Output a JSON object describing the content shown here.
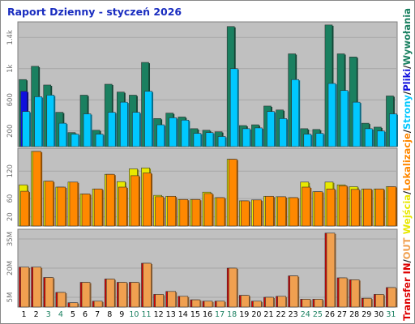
{
  "title": "Raport Dzienny -  styczeń 2026",
  "chart_data": [
    {
      "type": "bar",
      "yticks": [
        "200",
        "600",
        "1k",
        "1.4k"
      ],
      "ytick_values": [
        200,
        600,
        1000,
        1400
      ],
      "ylim": [
        0,
        1600
      ],
      "grid": true,
      "categories": [
        "1",
        "2",
        "3",
        "4",
        "5",
        "6",
        "7",
        "8",
        "9",
        "10",
        "11",
        "12",
        "13",
        "14",
        "15",
        "16",
        "17",
        "18",
        "19",
        "20",
        "21",
        "22",
        "23",
        "24",
        "25",
        "26",
        "27",
        "28",
        "29",
        "30",
        "31"
      ],
      "series": [
        {
          "name": "Wywołania",
          "color": "#1a8060",
          "values": [
            860,
            1030,
            790,
            440,
            180,
            660,
            210,
            800,
            700,
            660,
            1080,
            360,
            430,
            380,
            230,
            210,
            190,
            1540,
            270,
            280,
            520,
            470,
            1190,
            230,
            220,
            1560,
            1190,
            1150,
            300,
            250,
            650
          ]
        },
        {
          "name": "Pliki",
          "color": "#1010dd",
          "values": [
            710,
            0,
            0,
            0,
            0,
            0,
            0,
            0,
            0,
            0,
            0,
            0,
            0,
            0,
            0,
            0,
            0,
            0,
            0,
            0,
            0,
            0,
            0,
            0,
            0,
            0,
            0,
            0,
            0,
            0,
            0
          ]
        },
        {
          "name": "Strony",
          "color": "#00c8ff",
          "values": [
            450,
            640,
            660,
            300,
            160,
            420,
            160,
            440,
            570,
            440,
            710,
            280,
            370,
            340,
            170,
            180,
            130,
            1000,
            230,
            240,
            450,
            360,
            860,
            160,
            170,
            810,
            720,
            570,
            230,
            200,
            420
          ]
        }
      ]
    },
    {
      "type": "bar",
      "yticks": [
        "20",
        "60",
        "120"
      ],
      "ytick_values": [
        20,
        60,
        120
      ],
      "ylim": [
        0,
        170
      ],
      "grid": true,
      "categories": [
        "1",
        "2",
        "3",
        "4",
        "5",
        "6",
        "7",
        "8",
        "9",
        "10",
        "11",
        "12",
        "13",
        "14",
        "15",
        "16",
        "17",
        "18",
        "19",
        "20",
        "21",
        "22",
        "23",
        "24",
        "25",
        "26",
        "27",
        "28",
        "29",
        "30",
        "31"
      ],
      "series": [
        {
          "name": "Wejścia",
          "color": "#e8e800",
          "values": [
            90,
            163,
            98,
            85,
            96,
            70,
            81,
            113,
            97,
            125,
            127,
            67,
            65,
            58,
            58,
            74,
            62,
            146,
            55,
            57,
            65,
            64,
            62,
            96,
            75,
            96,
            90,
            86,
            81,
            81,
            86
          ]
        },
        {
          "name": "Lokalizacje",
          "color": "#ff8800",
          "values": [
            76,
            163,
            98,
            85,
            96,
            70,
            81,
            113,
            85,
            110,
            116,
            64,
            65,
            58,
            58,
            71,
            62,
            146,
            55,
            57,
            65,
            64,
            62,
            85,
            75,
            81,
            88,
            80,
            81,
            81,
            86
          ]
        }
      ]
    },
    {
      "type": "bar",
      "yticks": [
        "5M",
        "20M",
        "35M"
      ],
      "ytick_values": [
        5,
        20,
        35
      ],
      "ylim": [
        0,
        40
      ],
      "grid": true,
      "categories": [
        "1",
        "2",
        "3",
        "4",
        "5",
        "6",
        "7",
        "8",
        "9",
        "10",
        "11",
        "12",
        "13",
        "14",
        "15",
        "16",
        "17",
        "18",
        "19",
        "20",
        "21",
        "22",
        "23",
        "24",
        "25",
        "26",
        "27",
        "28",
        "29",
        "30",
        "31"
      ],
      "series": [
        {
          "name": "IN",
          "color": "#dd0000",
          "values": [
            20.5,
            20.5,
            15.2,
            7.5,
            2.2,
            12.7,
            3.0,
            14.4,
            12.7,
            12.7,
            22.5,
            6.5,
            8.0,
            5.5,
            3.7,
            3.0,
            3.0,
            20.0,
            6.0,
            3.0,
            5.0,
            5.5,
            16.0,
            4.0,
            4.0,
            38.0,
            15.0,
            14.0,
            4.5,
            6.5,
            10.0
          ]
        },
        {
          "name": "OUT",
          "color": "#f0a050",
          "values": [
            20.5,
            20.5,
            15.2,
            7.5,
            2.2,
            12.7,
            3.0,
            14.4,
            12.7,
            12.7,
            22.5,
            6.5,
            8.0,
            5.5,
            3.7,
            3.0,
            3.0,
            20.0,
            6.0,
            3.0,
            5.0,
            5.5,
            16.0,
            4.0,
            4.0,
            38.0,
            15.0,
            14.0,
            4.5,
            6.5,
            10.0
          ]
        }
      ]
    }
  ],
  "x_labels": [
    {
      "text": "1",
      "color": "#000000"
    },
    {
      "text": "2",
      "color": "#000000"
    },
    {
      "text": "3",
      "color": "#1a8060"
    },
    {
      "text": "4",
      "color": "#1a8060"
    },
    {
      "text": "5",
      "color": "#000000"
    },
    {
      "text": "6",
      "color": "#000000"
    },
    {
      "text": "7",
      "color": "#000000"
    },
    {
      "text": "8",
      "color": "#000000"
    },
    {
      "text": "9",
      "color": "#000000"
    },
    {
      "text": "10",
      "color": "#1a8060"
    },
    {
      "text": "11",
      "color": "#1a8060"
    },
    {
      "text": "12",
      "color": "#000000"
    },
    {
      "text": "13",
      "color": "#000000"
    },
    {
      "text": "14",
      "color": "#000000"
    },
    {
      "text": "15",
      "color": "#000000"
    },
    {
      "text": "16",
      "color": "#000000"
    },
    {
      "text": "17",
      "color": "#1a8060"
    },
    {
      "text": "18",
      "color": "#1a8060"
    },
    {
      "text": "19",
      "color": "#000000"
    },
    {
      "text": "20",
      "color": "#000000"
    },
    {
      "text": "21",
      "color": "#000000"
    },
    {
      "text": "22",
      "color": "#000000"
    },
    {
      "text": "23",
      "color": "#000000"
    },
    {
      "text": "24",
      "color": "#1a8060"
    },
    {
      "text": "25",
      "color": "#1a8060"
    },
    {
      "text": "26",
      "color": "#000000"
    },
    {
      "text": "27",
      "color": "#000000"
    },
    {
      "text": "28",
      "color": "#000000"
    },
    {
      "text": "29",
      "color": "#000000"
    },
    {
      "text": "30",
      "color": "#000000"
    },
    {
      "text": "31",
      "color": "#1a8060"
    }
  ],
  "legend": {
    "parts": [
      {
        "text": "Transfer",
        "color": "#dd0000"
      },
      {
        "text": " IN",
        "color": "#dd0000"
      },
      {
        "text": "/",
        "color": "#222222"
      },
      {
        "text": "OUT",
        "color": "#f0a050"
      },
      {
        "text": "  ",
        "color": "#222222"
      },
      {
        "text": "Wejścia",
        "color": "#e8e800"
      },
      {
        "text": "/",
        "color": "#222222"
      },
      {
        "text": "Lokalizacje",
        "color": "#ff8800"
      },
      {
        "text": "/",
        "color": "#222222"
      },
      {
        "text": "Strony",
        "color": "#00c8ff"
      },
      {
        "text": "/",
        "color": "#222222"
      },
      {
        "text": "Pliki",
        "color": "#1010dd"
      },
      {
        "text": "/",
        "color": "#222222"
      },
      {
        "text": "Wywołania",
        "color": "#1a8060"
      }
    ]
  }
}
